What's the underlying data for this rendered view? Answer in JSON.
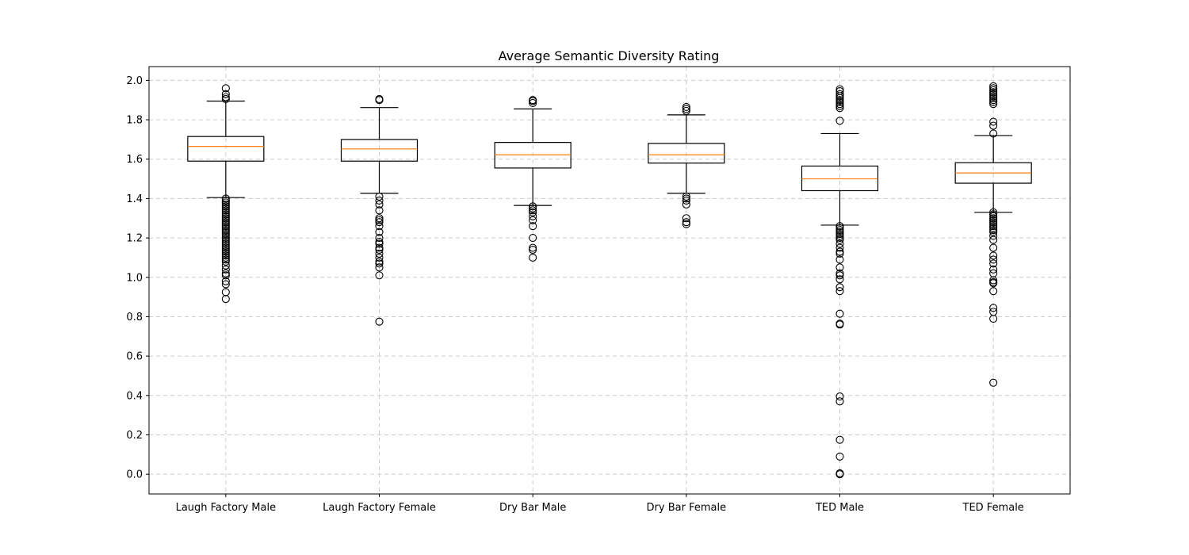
{
  "chart_data": {
    "type": "boxplot",
    "title": "Average Semantic Diversity Rating",
    "xlabel": "",
    "ylabel": "",
    "ylim": [
      -0.1,
      2.07
    ],
    "yticks": [
      0.0,
      0.2,
      0.4,
      0.6,
      0.8,
      1.0,
      1.2,
      1.4,
      1.6,
      1.8,
      2.0
    ],
    "ytick_labels": [
      "0.0",
      "0.2",
      "0.4",
      "0.6",
      "0.8",
      "1.0",
      "1.2",
      "1.4",
      "1.6",
      "1.8",
      "2.0"
    ],
    "grid": true,
    "categories": [
      "Laugh Factory Male",
      "Laugh Factory Female",
      "Dry Bar Male",
      "Dry Bar Female",
      "TED Male",
      "TED Female"
    ],
    "boxes": [
      {
        "q1": 1.59,
        "median": 1.665,
        "q3": 1.715,
        "whisker_low": 1.405,
        "whisker_high": 1.895,
        "outliers": [
          1.96,
          1.93,
          1.915,
          1.905,
          1.4,
          1.39,
          1.38,
          1.37,
          1.36,
          1.35,
          1.34,
          1.33,
          1.32,
          1.31,
          1.3,
          1.29,
          1.28,
          1.27,
          1.26,
          1.25,
          1.24,
          1.23,
          1.22,
          1.21,
          1.2,
          1.19,
          1.18,
          1.17,
          1.16,
          1.15,
          1.14,
          1.13,
          1.12,
          1.11,
          1.1,
          1.09,
          1.08,
          1.06,
          1.04,
          1.02,
          1.01,
          0.98,
          0.965,
          0.925,
          0.89
        ]
      },
      {
        "q1": 1.59,
        "median": 1.652,
        "q3": 1.7,
        "whisker_low": 1.427,
        "whisker_high": 1.862,
        "outliers": [
          1.905,
          1.9,
          1.41,
          1.39,
          1.37,
          1.34,
          1.3,
          1.29,
          1.28,
          1.26,
          1.23,
          1.2,
          1.18,
          1.17,
          1.15,
          1.14,
          1.12,
          1.1,
          1.08,
          1.07,
          1.05,
          1.01,
          0.775
        ]
      },
      {
        "q1": 1.555,
        "median": 1.622,
        "q3": 1.685,
        "whisker_low": 1.365,
        "whisker_high": 1.855,
        "outliers": [
          1.9,
          1.895,
          1.885,
          1.36,
          1.35,
          1.34,
          1.33,
          1.31,
          1.29,
          1.26,
          1.2,
          1.15,
          1.14,
          1.1
        ]
      },
      {
        "q1": 1.58,
        "median": 1.622,
        "q3": 1.68,
        "whisker_low": 1.427,
        "whisker_high": 1.825,
        "outliers": [
          1.865,
          1.855,
          1.845,
          1.41,
          1.4,
          1.39,
          1.37,
          1.3,
          1.28,
          1.27
        ]
      },
      {
        "q1": 1.44,
        "median": 1.5,
        "q3": 1.565,
        "whisker_low": 1.265,
        "whisker_high": 1.73,
        "outliers": [
          1.955,
          1.945,
          1.93,
          1.92,
          1.91,
          1.9,
          1.89,
          1.88,
          1.87,
          1.86,
          1.795,
          1.26,
          1.25,
          1.24,
          1.23,
          1.22,
          1.21,
          1.2,
          1.19,
          1.17,
          1.15,
          1.13,
          1.12,
          1.09,
          1.05,
          1.02,
          1.01,
          0.99,
          0.95,
          0.93,
          0.815,
          0.765,
          0.76,
          0.395,
          0.37,
          0.175,
          0.09,
          0.005,
          0.0
        ]
      },
      {
        "q1": 1.478,
        "median": 1.53,
        "q3": 1.582,
        "whisker_low": 1.33,
        "whisker_high": 1.72,
        "outliers": [
          1.97,
          1.96,
          1.95,
          1.94,
          1.93,
          1.92,
          1.91,
          1.9,
          1.89,
          1.88,
          1.79,
          1.77,
          1.73,
          1.33,
          1.32,
          1.31,
          1.3,
          1.29,
          1.28,
          1.27,
          1.26,
          1.25,
          1.24,
          1.23,
          1.21,
          1.19,
          1.15,
          1.11,
          1.09,
          1.07,
          1.04,
          1.02,
          0.985,
          0.975,
          0.97,
          0.93,
          0.845,
          0.825,
          0.79,
          0.465
        ]
      }
    ],
    "colors": {
      "box": "#000000",
      "median": "#ff7f0e",
      "grid": "#cccccc",
      "background": "#ffffff"
    }
  }
}
